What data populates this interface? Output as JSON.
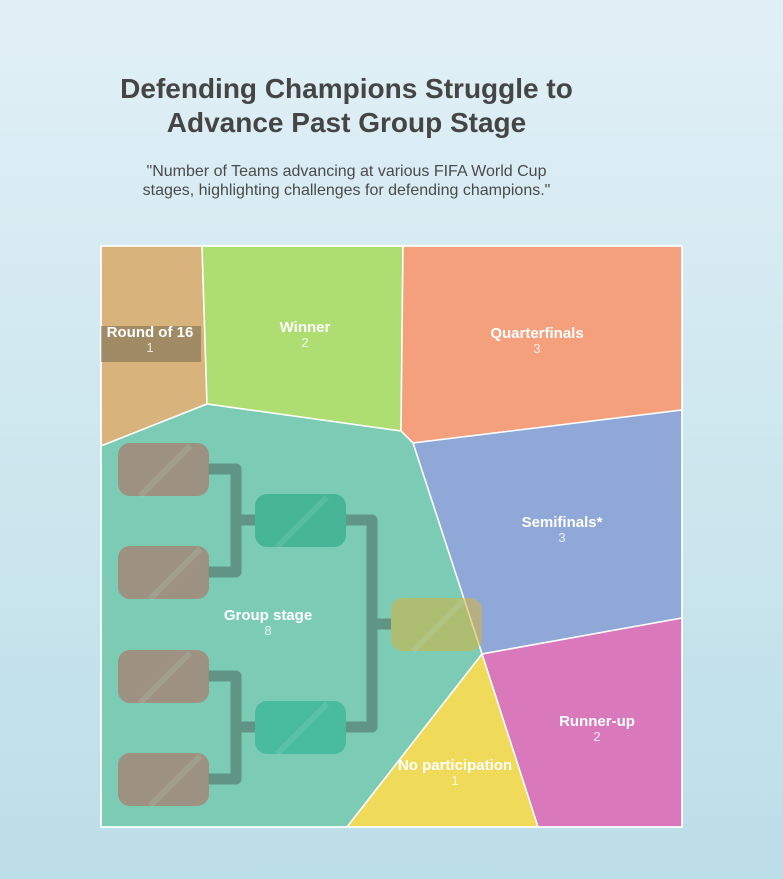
{
  "chart_data": {
    "type": "voronoi-treemap",
    "title_lines": [
      "Defending Champions Struggle to",
      "Advance Past Group Stage"
    ],
    "subtitle_lines": [
      "\"Number of Teams advancing at various FIFA World Cup",
      "stages, highlighting challenges for defending champions.\""
    ],
    "cells": [
      {
        "name": "Round of 16",
        "value": 1,
        "color": "#d9b37c"
      },
      {
        "name": "Winner",
        "value": 2,
        "color": "#aede72"
      },
      {
        "name": "Quarterfinals",
        "value": 3,
        "color": "#f5a07c"
      },
      {
        "name": "Semifinals*",
        "value": 3,
        "color": "#8fa8d8"
      },
      {
        "name": "Group stage",
        "value": 8,
        "color": "#7ccbb5"
      },
      {
        "name": "Runner-up",
        "value": 2,
        "color": "#d978ba"
      },
      {
        "name": "No participation",
        "value": 1,
        "color": "#efda5a"
      }
    ]
  }
}
